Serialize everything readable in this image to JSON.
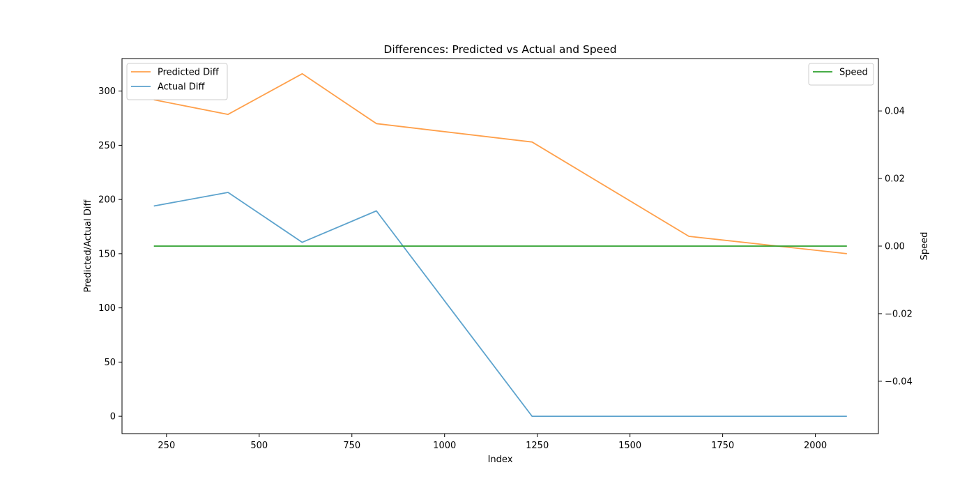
{
  "chart_data": {
    "type": "line",
    "title": "Differences: Predicted vs Actual and Speed",
    "xlabel": "Index",
    "ylabel": "Predicted/Actual Diff",
    "y2label": "Speed",
    "xlim": [
      130,
      2170
    ],
    "ylim": [
      -16,
      330
    ],
    "y2lim": [
      -0.0555,
      0.0555
    ],
    "xticks": [
      250,
      500,
      750,
      1000,
      1250,
      1500,
      1750,
      2000
    ],
    "yticks": [
      0,
      50,
      100,
      150,
      200,
      250,
      300
    ],
    "y2ticks": [
      -0.04,
      -0.02,
      0.0,
      0.02,
      0.04
    ],
    "y2tick_labels": [
      "−0.04",
      "−0.02",
      "0.00",
      "0.02",
      "0.04"
    ],
    "grid": false,
    "series": [
      {
        "name": "Predicted Diff",
        "axis": "left",
        "color": "#ffa04b",
        "x": [
          216,
          416,
          616,
          816,
          1236,
          1659,
          2085
        ],
        "values": [
          292,
          278.5,
          316,
          270,
          253,
          166,
          150
        ]
      },
      {
        "name": "Actual Diff",
        "axis": "left",
        "color": "#5da3cd",
        "x": [
          216,
          416,
          616,
          816,
          1236,
          1659,
          2085
        ],
        "values": [
          194,
          206.5,
          160.5,
          189.5,
          0,
          0,
          0
        ]
      },
      {
        "name": "Speed",
        "axis": "right",
        "color": "#2ca02c",
        "x": [
          216,
          416,
          616,
          816,
          1236,
          1659,
          2085
        ],
        "values": [
          0,
          0,
          0,
          0,
          0,
          0,
          0
        ]
      }
    ],
    "legends": [
      {
        "placement": "upper-left",
        "entries": [
          "Predicted Diff",
          "Actual Diff"
        ]
      },
      {
        "placement": "upper-right",
        "entries": [
          "Speed"
        ]
      }
    ]
  }
}
